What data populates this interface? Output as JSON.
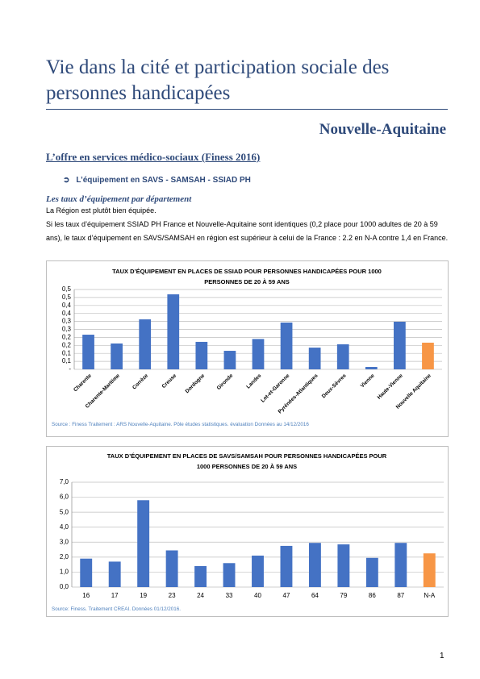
{
  "header": {
    "title": "Vie dans la cité et participation sociale des personnes handicapées",
    "region": "Nouvelle-Aquitaine"
  },
  "section": {
    "heading": "L’offre en services médico-sociaux (Finess 2016)",
    "bullet": "L’équipement en SAVS  - SAMSAH - SSIAD PH",
    "subheading": "Les taux d’équipement par département",
    "paragraphs": [
      "La Région est plutôt bien équipée.",
      "Si les taux d’équipement SSIAD PH France et Nouvelle-Aquitaine sont identiques (0,2 place pour 1000 adultes de 20 à 59 ans), le taux d’équipement en SAVS/SAMSAH en région est supérieur à celui de la France : 2.2 en N-A contre 1,4 en France."
    ]
  },
  "page_number": "1",
  "chart_data": [
    {
      "type": "bar",
      "title": [
        "TAUX D’ÉQUIPEMENT EN PLACES DE SSIAD POUR PERSONNES HANDICAPÉES POUR 1000",
        "PERSONNES DE 20 À 59 ANS"
      ],
      "categories": [
        "Charente",
        "Charente-Maritime",
        "Corrèze",
        "Creuse",
        "Dordogne",
        "Gironde",
        "Landes",
        "Lot-et-Garonne",
        "Pyrénées-Atlantiques",
        "Deux-Sèvres",
        "Vienne",
        "Haute-Vienne",
        "Nouvelle Aquitaine"
      ],
      "values": [
        0.217,
        0.162,
        0.313,
        0.47,
        0.172,
        0.116,
        0.19,
        0.293,
        0.136,
        0.157,
        0.015,
        0.298,
        0.167
      ],
      "colors": [
        "#4472c4",
        "#4472c4",
        "#4472c4",
        "#4472c4",
        "#4472c4",
        "#4472c4",
        "#4472c4",
        "#4472c4",
        "#4472c4",
        "#4472c4",
        "#4472c4",
        "#4472c4",
        "#f79646"
      ],
      "ylim": [
        0,
        0.5
      ],
      "yticks": [
        {
          "value": 0,
          "label": "-"
        },
        {
          "value": 0.05,
          "label": "0,1"
        },
        {
          "value": 0.1,
          "label": "0,1"
        },
        {
          "value": 0.15,
          "label": "0,2"
        },
        {
          "value": 0.2,
          "label": "0,2"
        },
        {
          "value": 0.25,
          "label": "0,3"
        },
        {
          "value": 0.3,
          "label": "0,3"
        },
        {
          "value": 0.35,
          "label": "0,4"
        },
        {
          "value": 0.4,
          "label": "0,4"
        },
        {
          "value": 0.45,
          "label": "0,5"
        },
        {
          "value": 0.5,
          "label": "0,5"
        }
      ],
      "grid": true,
      "rotate_labels": true,
      "source": "Source : Finess  Traitement : ARS Nouvelle-Aquitaine. Pôle études statistiques. évaluation   Données au 14/12/2016"
    },
    {
      "type": "bar",
      "title": [
        "TAUX D’ÉQUIPEMENT EN PLACES DE SAVS/SAMSAH POUR PERSONNES HANDICAPÉES POUR",
        "1000 PERSONNES DE 20 À 59 ANS"
      ],
      "categories": [
        "16",
        "17",
        "19",
        "23",
        "24",
        "33",
        "40",
        "47",
        "64",
        "79",
        "86",
        "87",
        "N-A"
      ],
      "values": [
        1.9,
        1.7,
        5.8,
        2.45,
        1.4,
        1.6,
        2.1,
        2.75,
        2.95,
        2.85,
        1.95,
        2.95,
        2.25
      ],
      "colors": [
        "#4472c4",
        "#4472c4",
        "#4472c4",
        "#4472c4",
        "#4472c4",
        "#4472c4",
        "#4472c4",
        "#4472c4",
        "#4472c4",
        "#4472c4",
        "#4472c4",
        "#4472c4",
        "#f79646"
      ],
      "ylim": [
        0,
        7
      ],
      "yticks": [
        {
          "value": 0,
          "label": "0,0"
        },
        {
          "value": 1,
          "label": "1,0"
        },
        {
          "value": 2,
          "label": "2,0"
        },
        {
          "value": 3,
          "label": "3,0"
        },
        {
          "value": 4,
          "label": "4,0"
        },
        {
          "value": 5,
          "label": "5,0"
        },
        {
          "value": 6,
          "label": "6,0"
        },
        {
          "value": 7,
          "label": "7,0"
        }
      ],
      "grid": true,
      "rotate_labels": false,
      "source": "Source: Finess. Traitement CREAI. Données 01/12/2016."
    }
  ]
}
